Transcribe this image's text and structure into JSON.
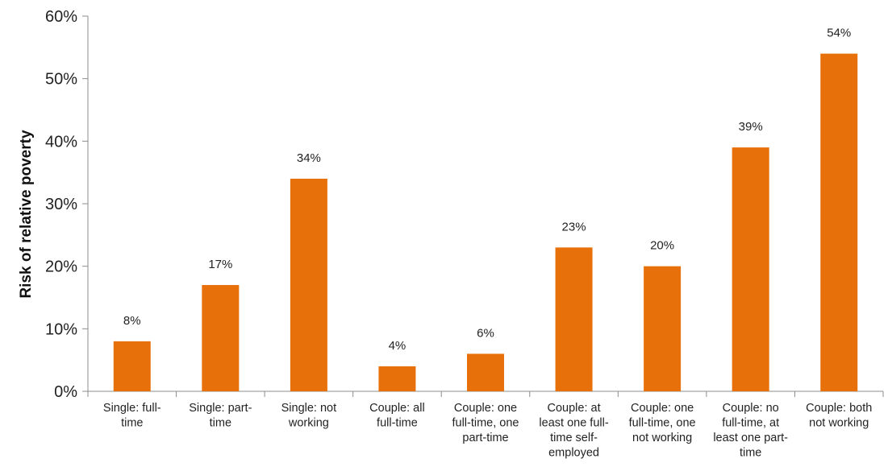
{
  "chart_data": {
    "type": "bar",
    "title": "",
    "xlabel": "",
    "ylabel": "Risk of relative poverty",
    "ylim": [
      0,
      60
    ],
    "y_ticks": [
      "0%",
      "10%",
      "20%",
      "30%",
      "40%",
      "50%",
      "60%"
    ],
    "grid": false,
    "legend": "none",
    "bar_color": "#E8700A",
    "categories": [
      [
        "Single: full-",
        "time"
      ],
      [
        "Single: part-",
        "time"
      ],
      [
        "Single: not",
        "working"
      ],
      [
        "Couple: all",
        "full-time"
      ],
      [
        "Couple: one",
        "full-time, one",
        "part-time"
      ],
      [
        "Couple: at",
        "least one full-",
        "time self-",
        "employed"
      ],
      [
        "Couple: one",
        "full-time, one",
        "not working"
      ],
      [
        "Couple: no",
        "full-time, at",
        "least one part-",
        "time"
      ],
      [
        "Couple: both",
        "not working"
      ]
    ],
    "values": [
      8,
      17,
      34,
      4,
      6,
      23,
      20,
      39,
      54
    ],
    "data_labels": [
      "8%",
      "17%",
      "34%",
      "4%",
      "6%",
      "23%",
      "20%",
      "39%",
      "54%"
    ]
  }
}
